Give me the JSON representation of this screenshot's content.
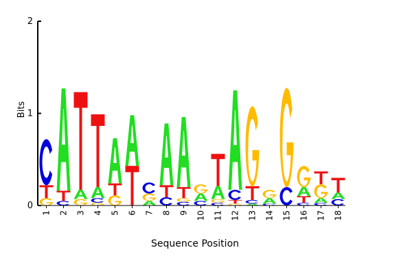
{
  "chart_data": {
    "type": "sequence-logo",
    "title": "",
    "xlabel": "Sequence Position",
    "ylabel": "Bits",
    "ylim": [
      0,
      2
    ],
    "y_ticks": [
      "0",
      "1",
      "2"
    ],
    "positions": [
      "1",
      "2",
      "3",
      "4",
      "5",
      "6",
      "7",
      "8",
      "9",
      "10",
      "11",
      "12",
      "13",
      "14",
      "15",
      "16",
      "17",
      "18"
    ],
    "colors": {
      "A": "#22dd22",
      "C": "#0000dd",
      "G": "#ffbb00",
      "T": "#ee1111"
    },
    "stacks": [
      [
        {
          "letter": "G",
          "value": 0.08
        },
        {
          "letter": "T",
          "value": 0.14
        },
        {
          "letter": "C",
          "value": 0.5
        }
      ],
      [
        {
          "letter": "C",
          "value": 0.05
        },
        {
          "letter": "T",
          "value": 0.11
        },
        {
          "letter": "A",
          "value": 1.11
        }
      ],
      [
        {
          "letter": "G",
          "value": 0.07
        },
        {
          "letter": "A",
          "value": 0.1
        },
        {
          "letter": "T",
          "value": 1.06
        }
      ],
      [
        {
          "letter": "G",
          "value": 0.03
        },
        {
          "letter": "C",
          "value": 0.05
        },
        {
          "letter": "A",
          "value": 0.12
        },
        {
          "letter": "T",
          "value": 0.79
        }
      ],
      [
        {
          "letter": "G",
          "value": 0.11
        },
        {
          "letter": "T",
          "value": 0.13
        },
        {
          "letter": "A",
          "value": 0.49
        }
      ],
      [
        {
          "letter": "T",
          "value": 0.43
        },
        {
          "letter": "A",
          "value": 0.55
        }
      ],
      [
        {
          "letter": "A",
          "value": 0.05
        },
        {
          "letter": "G",
          "value": 0.08
        },
        {
          "letter": "C",
          "value": 0.12
        }
      ],
      [
        {
          "letter": "C",
          "value": 0.09
        },
        {
          "letter": "T",
          "value": 0.13
        },
        {
          "letter": "A",
          "value": 0.67
        }
      ],
      [
        {
          "letter": "C",
          "value": 0.04
        },
        {
          "letter": "G",
          "value": 0.04
        },
        {
          "letter": "T",
          "value": 0.12
        },
        {
          "letter": "A",
          "value": 0.76
        }
      ],
      [
        {
          "letter": "C",
          "value": 0.05
        },
        {
          "letter": "A",
          "value": 0.08
        },
        {
          "letter": "G",
          "value": 0.1
        }
      ],
      [
        {
          "letter": "C",
          "value": 0.03
        },
        {
          "letter": "G",
          "value": 0.04
        },
        {
          "letter": "A",
          "value": 0.14
        },
        {
          "letter": "T",
          "value": 0.35
        }
      ],
      [
        {
          "letter": "G",
          "value": 0.02
        },
        {
          "letter": "T",
          "value": 0.04
        },
        {
          "letter": "C",
          "value": 0.11
        },
        {
          "letter": "A",
          "value": 1.08
        }
      ],
      [
        {
          "letter": "A",
          "value": 0.02
        },
        {
          "letter": "C",
          "value": 0.04
        },
        {
          "letter": "T",
          "value": 0.15
        },
        {
          "letter": "G",
          "value": 0.87
        }
      ],
      [
        {
          "letter": "C",
          "value": 0.02
        },
        {
          "letter": "A",
          "value": 0.06
        },
        {
          "letter": "G",
          "value": 0.09
        }
      ],
      [
        {
          "letter": "C",
          "value": 0.2
        },
        {
          "letter": "G",
          "value": 1.08
        }
      ],
      [
        {
          "letter": "C",
          "value": 0.03
        },
        {
          "letter": "T",
          "value": 0.07
        },
        {
          "letter": "A",
          "value": 0.1
        },
        {
          "letter": "G",
          "value": 0.23
        }
      ],
      [
        {
          "letter": "C",
          "value": 0.03
        },
        {
          "letter": "A",
          "value": 0.05
        },
        {
          "letter": "G",
          "value": 0.15
        },
        {
          "letter": "T",
          "value": 0.14
        }
      ],
      [
        {
          "letter": "C",
          "value": 0.07
        },
        {
          "letter": "A",
          "value": 0.07
        },
        {
          "letter": "T",
          "value": 0.16
        }
      ]
    ]
  }
}
